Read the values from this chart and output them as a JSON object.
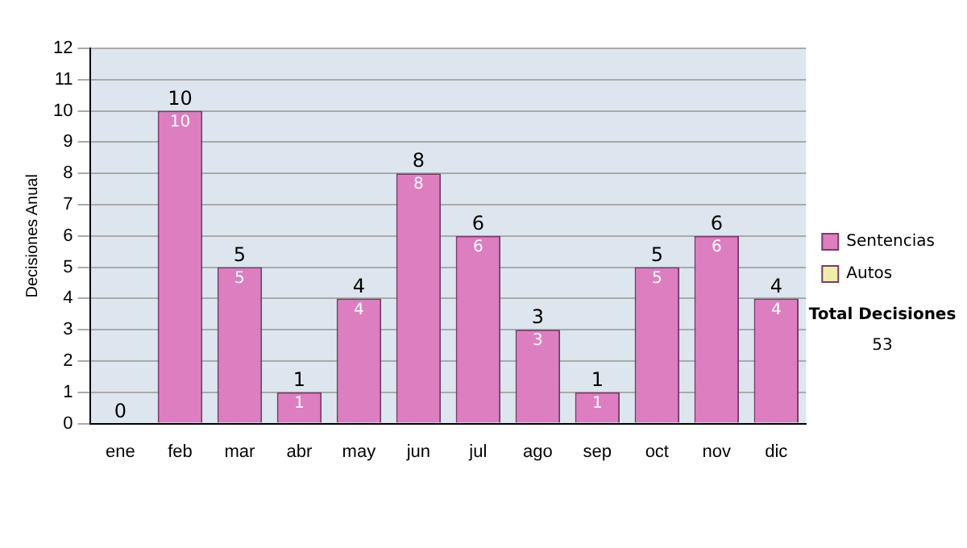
{
  "chart_data": {
    "type": "bar",
    "ylabel": "Decisiones Anual",
    "categories": [
      "ene",
      "feb",
      "mar",
      "abr",
      "may",
      "jun",
      "jul",
      "ago",
      "sep",
      "oct",
      "nov",
      "dic"
    ],
    "series": [
      {
        "name": "Sentencias",
        "color": "#dd7ec0",
        "values": [
          0,
          10,
          5,
          1,
          4,
          8,
          6,
          3,
          1,
          5,
          6,
          4
        ],
        "value_labels": [
          null,
          "10",
          "5",
          "1",
          "4",
          "8",
          "6",
          "3",
          "1",
          "5",
          "6",
          "4"
        ]
      },
      {
        "name": "Autos",
        "color": "#eeeeaa",
        "values": [
          0,
          0,
          0,
          0,
          0,
          0,
          0,
          0,
          0,
          0,
          0,
          0
        ]
      }
    ],
    "stacked": true,
    "totals": [
      "0",
      "10",
      "5",
      "1",
      "4",
      "8",
      "6",
      "3",
      "1",
      "5",
      "6",
      "4"
    ],
    "ylim": [
      0,
      12
    ],
    "yticks": [
      0,
      1,
      2,
      3,
      4,
      5,
      6,
      7,
      8,
      9,
      10,
      11,
      12
    ],
    "grid": "y",
    "legend": "right",
    "annotations": [
      "Total Decisiones",
      "53"
    ]
  }
}
